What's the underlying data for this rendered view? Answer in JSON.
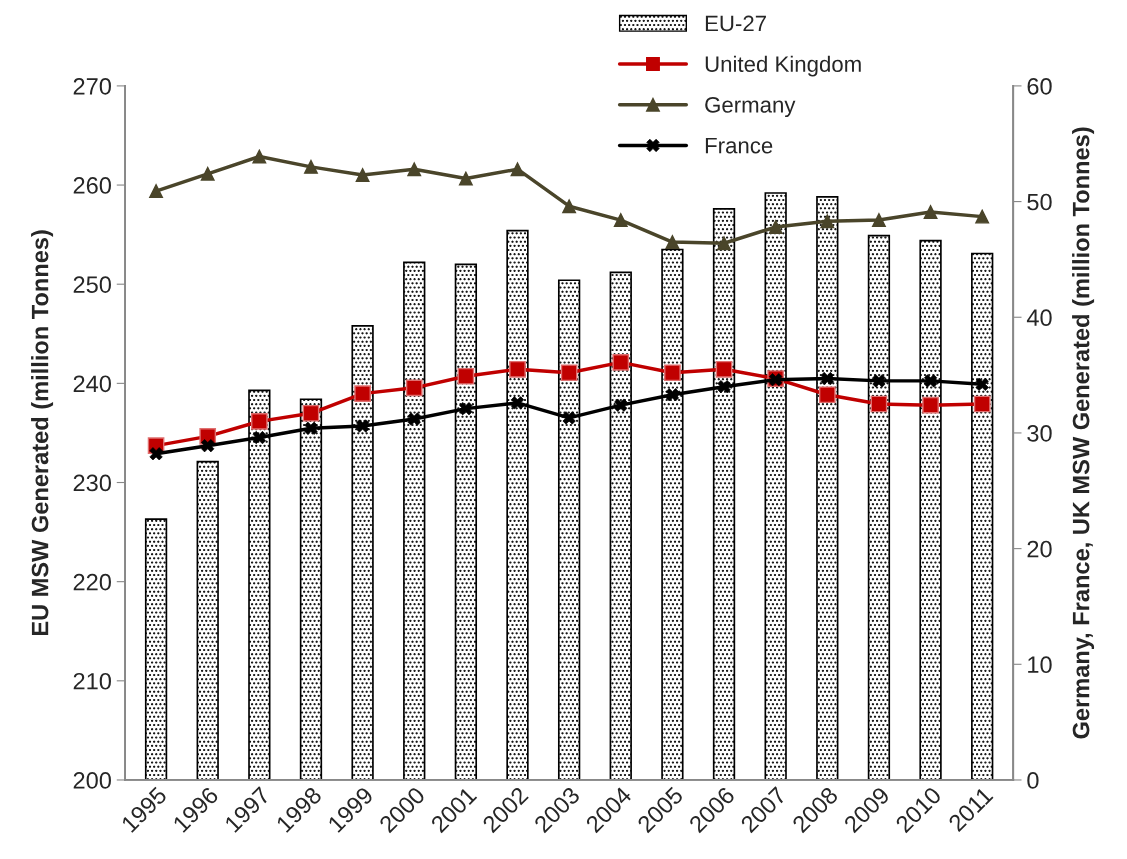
{
  "chart_data": {
    "type": "bar",
    "ylabel": "EU MSW Generated (million Tonnes)",
    "y2label": "Germany, France, UK MSW Generated (million Tonnes)",
    "categories": [
      "1995",
      "1996",
      "1997",
      "1998",
      "1999",
      "2000",
      "2001",
      "2002",
      "2003",
      "2004",
      "2005",
      "2006",
      "2007",
      "2008",
      "2009",
      "2010",
      "2011"
    ],
    "series": [
      {
        "name": "EU-27",
        "color": "#000000",
        "values": [
          226.3,
          232.1,
          239.3,
          238.4,
          245.8,
          252.2,
          252.0,
          255.4,
          250.4,
          251.2,
          253.5,
          257.6,
          259.2,
          258.8,
          254.9,
          254.4,
          253.1
        ]
      },
      {
        "name": "United Kingdom",
        "type": "line",
        "axis": "y2",
        "marker": "square",
        "color": "#c00000",
        "values": [
          28.9,
          29.7,
          31.0,
          31.7,
          33.4,
          33.9,
          34.9,
          35.5,
          35.2,
          36.1,
          35.2,
          35.5,
          34.7,
          33.3,
          32.5,
          32.4,
          32.5
        ]
      },
      {
        "name": "Germany",
        "type": "line",
        "axis": "y2",
        "marker": "triangle",
        "color": "#4a452a",
        "values": [
          50.9,
          52.4,
          53.9,
          53.0,
          52.3,
          52.8,
          52.0,
          52.8,
          49.6,
          48.4,
          46.5,
          46.4,
          47.8,
          48.3,
          48.4,
          49.1,
          48.7
        ]
      },
      {
        "name": "France",
        "type": "line",
        "axis": "y2",
        "marker": "cross",
        "color": "#000000",
        "values": [
          28.2,
          28.9,
          29.6,
          30.4,
          30.6,
          31.2,
          32.1,
          32.6,
          31.3,
          32.4,
          33.3,
          34.0,
          34.6,
          34.7,
          34.5,
          34.5,
          34.2
        ]
      }
    ],
    "ylim": [
      200,
      270
    ],
    "yticks": [
      200,
      210,
      220,
      230,
      240,
      250,
      260,
      270
    ],
    "y2lim": [
      0,
      60
    ],
    "y2ticks": [
      0,
      10,
      20,
      30,
      40,
      50,
      60
    ],
    "grid": false,
    "legend": "top right"
  }
}
